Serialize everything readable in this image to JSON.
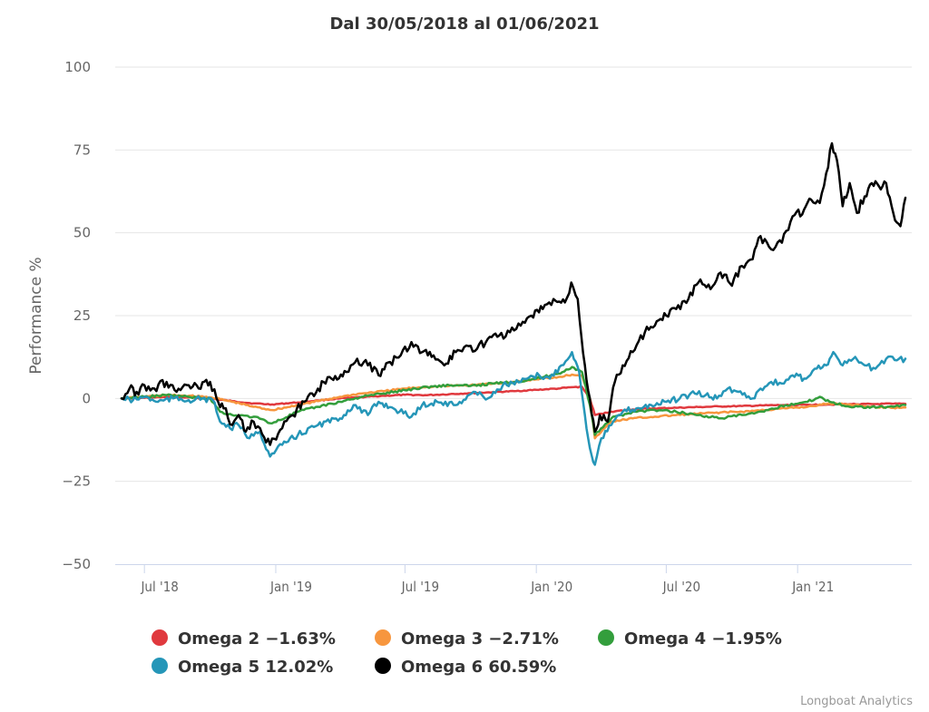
{
  "chart_data": {
    "type": "line",
    "title": "Dal 30/05/2018 al 01/06/2021",
    "xlabel": "",
    "ylabel": "Performance %",
    "ylim": [
      -50,
      100
    ],
    "yticks": [
      100,
      75,
      50,
      25,
      0,
      -25,
      -50
    ],
    "ytick_labels": [
      "100",
      "75",
      "50",
      "25",
      "0",
      "−25",
      "−50"
    ],
    "xlim": [
      "2018-05-30",
      "2021-06-01"
    ],
    "xticks": [
      "2018-07-01",
      "2019-01-01",
      "2019-07-01",
      "2020-01-01",
      "2020-07-01",
      "2021-01-01"
    ],
    "xtick_labels": [
      "Jul '18",
      "Jan '19",
      "Jul '19",
      "Jan '20",
      "Jul '20",
      "Jan '21"
    ],
    "grid": true,
    "legend_position": "bottom",
    "credits": "Longboat Analytics",
    "series": [
      {
        "name": "Omega 2",
        "legend_label": "Omega 2 −1.63%",
        "final_value": -1.63,
        "color": "#e0393e",
        "x": [
          "2018-05-30",
          "2018-07-01",
          "2018-08-01",
          "2018-09-01",
          "2018-10-01",
          "2018-11-01",
          "2018-12-01",
          "2018-12-27",
          "2019-02-01",
          "2019-03-01",
          "2019-04-01",
          "2019-05-01",
          "2019-06-01",
          "2019-07-01",
          "2019-08-01",
          "2019-09-01",
          "2019-10-01",
          "2019-11-01",
          "2019-12-01",
          "2020-01-01",
          "2020-02-01",
          "2020-02-20",
          "2020-03-05",
          "2020-03-16",
          "2020-03-23",
          "2020-04-15",
          "2020-05-15",
          "2020-06-15",
          "2020-07-15",
          "2020-08-15",
          "2020-09-15",
          "2020-10-15",
          "2020-11-15",
          "2020-12-15",
          "2021-01-15",
          "2021-02-15",
          "2021-03-15",
          "2021-04-15",
          "2021-05-15",
          "2021-06-01"
        ],
        "y": [
          0,
          0.2,
          0.4,
          0.3,
          0,
          -0.8,
          -1.5,
          -1.8,
          -1.2,
          -0.6,
          0,
          0.4,
          0.8,
          1.1,
          1,
          1.3,
          1.6,
          1.9,
          2.2,
          2.6,
          3,
          3.4,
          3.5,
          0,
          -5,
          -4,
          -3.3,
          -3,
          -2.8,
          -2.6,
          -2.4,
          -2.3,
          -2.1,
          -2,
          -1.9,
          -1.8,
          -1.7,
          -1.7,
          -1.6,
          -1.63
        ]
      },
      {
        "name": "Omega 3",
        "legend_label": "Omega 3 −2.71%",
        "final_value": -2.71,
        "color": "#f7963e",
        "x": [
          "2018-05-30",
          "2018-07-01",
          "2018-08-01",
          "2018-09-01",
          "2018-10-01",
          "2018-11-01",
          "2018-12-01",
          "2018-12-27",
          "2019-02-01",
          "2019-03-01",
          "2019-04-01",
          "2019-05-01",
          "2019-06-01",
          "2019-07-01",
          "2019-08-01",
          "2019-09-01",
          "2019-10-01",
          "2019-11-01",
          "2019-12-01",
          "2020-01-01",
          "2020-02-01",
          "2020-02-20",
          "2020-03-05",
          "2020-03-16",
          "2020-03-23",
          "2020-04-15",
          "2020-05-15",
          "2020-06-15",
          "2020-07-15",
          "2020-08-15",
          "2020-09-15",
          "2020-10-15",
          "2020-11-15",
          "2020-12-15",
          "2021-01-15",
          "2021-02-15",
          "2021-03-15",
          "2021-04-15",
          "2021-05-15",
          "2021-06-01"
        ],
        "y": [
          0,
          0.5,
          1,
          0.8,
          0.4,
          -1,
          -2.5,
          -3.5,
          -2,
          -0.8,
          0.5,
          1.5,
          2.2,
          3,
          3.5,
          3.8,
          4,
          4.5,
          5,
          5.8,
          6.5,
          7.2,
          7,
          0,
          -12,
          -7,
          -6,
          -5.5,
          -5,
          -4.6,
          -4.2,
          -4,
          -3.5,
          -3,
          -2.5,
          -1.5,
          -1.8,
          -2.5,
          -2.8,
          -2.71
        ]
      },
      {
        "name": "Omega 4",
        "legend_label": "Omega 4 −1.95%",
        "final_value": -1.95,
        "color": "#339e3c",
        "x": [
          "2018-05-30",
          "2018-07-01",
          "2018-08-01",
          "2018-09-01",
          "2018-10-01",
          "2018-10-15",
          "2018-11-01",
          "2018-12-01",
          "2018-12-27",
          "2019-02-01",
          "2019-03-01",
          "2019-04-01",
          "2019-05-01",
          "2019-06-01",
          "2019-07-01",
          "2019-08-01",
          "2019-09-01",
          "2019-10-01",
          "2019-11-01",
          "2019-12-01",
          "2020-01-01",
          "2020-02-01",
          "2020-02-20",
          "2020-03-05",
          "2020-03-16",
          "2020-03-23",
          "2020-04-15",
          "2020-05-15",
          "2020-06-15",
          "2020-07-15",
          "2020-08-15",
          "2020-09-15",
          "2020-10-15",
          "2020-11-15",
          "2020-12-15",
          "2021-01-15",
          "2021-02-01",
          "2021-02-15",
          "2021-03-15",
          "2021-04-15",
          "2021-05-15",
          "2021-06-01"
        ],
        "y": [
          0,
          0.5,
          1,
          0.5,
          0,
          -4,
          -5,
          -5.5,
          -7.5,
          -4,
          -2.5,
          -1,
          0.5,
          1.5,
          2.5,
          3.5,
          4,
          3.8,
          4.5,
          5,
          6,
          7.5,
          9.5,
          8,
          -2,
          -11,
          -6,
          -4,
          -3.5,
          -4,
          -5,
          -6,
          -5,
          -4,
          -2,
          -1,
          0.5,
          -1,
          -2.5,
          -2.5,
          -2.5,
          -1.95
        ]
      },
      {
        "name": "Omega 5",
        "legend_label": "Omega 5 12.02%",
        "final_value": 12.02,
        "color": "#2596b8",
        "x": [
          "2018-05-30",
          "2018-06-15",
          "2018-07-01",
          "2018-07-20",
          "2018-08-10",
          "2018-09-01",
          "2018-09-20",
          "2018-10-05",
          "2018-10-15",
          "2018-10-29",
          "2018-11-10",
          "2018-11-25",
          "2018-12-10",
          "2018-12-24",
          "2019-01-10",
          "2019-02-01",
          "2019-03-01",
          "2019-04-01",
          "2019-04-20",
          "2019-05-10",
          "2019-05-25",
          "2019-06-15",
          "2019-07-10",
          "2019-07-25",
          "2019-08-15",
          "2019-09-10",
          "2019-10-05",
          "2019-10-25",
          "2019-11-15",
          "2019-12-10",
          "2020-01-05",
          "2020-01-20",
          "2020-02-05",
          "2020-02-20",
          "2020-03-01",
          "2020-03-09",
          "2020-03-16",
          "2020-03-23",
          "2020-04-01",
          "2020-04-15",
          "2020-05-01",
          "2020-05-20",
          "2020-06-10",
          "2020-07-01",
          "2020-07-20",
          "2020-08-10",
          "2020-08-25",
          "2020-09-10",
          "2020-09-25",
          "2020-10-10",
          "2020-10-30",
          "2020-11-10",
          "2020-11-25",
          "2020-12-10",
          "2020-12-25",
          "2021-01-10",
          "2021-01-25",
          "2021-02-10",
          "2021-02-20",
          "2021-03-05",
          "2021-03-20",
          "2021-04-05",
          "2021-04-20",
          "2021-05-05",
          "2021-05-20",
          "2021-06-01"
        ],
        "y": [
          0,
          -0.5,
          0.5,
          -1,
          0,
          -0.5,
          0,
          -0.5,
          -7,
          -9,
          -8,
          -12,
          -10,
          -17.5,
          -14,
          -11,
          -8,
          -6,
          -2,
          -5,
          -1,
          -3,
          -5.5,
          -2,
          -1,
          -2,
          2,
          0,
          4,
          5,
          7,
          6,
          10,
          14,
          8,
          -5,
          -15,
          -20,
          -12,
          -8,
          -4,
          -3,
          -2,
          -1,
          0,
          1.5,
          1,
          0,
          3,
          2,
          0,
          3,
          5,
          4.5,
          7,
          6,
          9,
          10,
          14,
          10,
          12,
          10,
          9,
          12,
          11.5,
          12.02
        ]
      },
      {
        "name": "Omega 6",
        "legend_label": "Omega 6 60.59%",
        "final_value": 60.59,
        "color": "#000000",
        "x": [
          "2018-05-30",
          "2018-06-10",
          "2018-06-20",
          "2018-07-01",
          "2018-07-15",
          "2018-08-01",
          "2018-08-15",
          "2018-09-01",
          "2018-09-15",
          "2018-10-01",
          "2018-10-10",
          "2018-10-20",
          "2018-11-01",
          "2018-11-10",
          "2018-11-20",
          "2018-12-01",
          "2018-12-10",
          "2018-12-24",
          "2019-01-10",
          "2019-01-25",
          "2019-02-10",
          "2019-03-01",
          "2019-03-20",
          "2019-04-10",
          "2019-04-25",
          "2019-05-10",
          "2019-05-25",
          "2019-06-10",
          "2019-06-25",
          "2019-07-10",
          "2019-07-25",
          "2019-08-10",
          "2019-08-25",
          "2019-09-10",
          "2019-09-25",
          "2019-10-10",
          "2019-10-25",
          "2019-11-10",
          "2019-11-25",
          "2019-12-10",
          "2019-12-25",
          "2020-01-10",
          "2020-01-25",
          "2020-02-10",
          "2020-02-19",
          "2020-02-28",
          "2020-03-09",
          "2020-03-16",
          "2020-03-23",
          "2020-03-30",
          "2020-04-10",
          "2020-04-20",
          "2020-05-01",
          "2020-05-15",
          "2020-06-01",
          "2020-06-15",
          "2020-07-01",
          "2020-07-15",
          "2020-08-01",
          "2020-08-15",
          "2020-09-01",
          "2020-09-15",
          "2020-10-01",
          "2020-10-15",
          "2020-10-30",
          "2020-11-10",
          "2020-11-25",
          "2020-12-10",
          "2020-12-25",
          "2021-01-10",
          "2021-01-20",
          "2021-02-01",
          "2021-02-10",
          "2021-02-18",
          "2021-02-25",
          "2021-03-05",
          "2021-03-15",
          "2021-03-25",
          "2021-04-05",
          "2021-04-15",
          "2021-04-25",
          "2021-05-05",
          "2021-05-15",
          "2021-05-25",
          "2021-06-01"
        ],
        "y": [
          0,
          3,
          2,
          4,
          3,
          5,
          2,
          4,
          3,
          5,
          0,
          -3,
          -8,
          -5,
          -10,
          -7,
          -9,
          -14,
          -9,
          -5,
          -1,
          3,
          6,
          8,
          12,
          10,
          7,
          11,
          13,
          17,
          14,
          13,
          10,
          14,
          16,
          15,
          18,
          19,
          20,
          22,
          25,
          27,
          30,
          29,
          35,
          30,
          10,
          0,
          -10,
          -5,
          -7,
          5,
          10,
          14,
          20,
          22,
          25,
          27,
          30,
          35,
          33,
          38,
          34,
          40,
          42,
          49,
          45,
          47,
          55,
          57,
          60,
          59,
          68,
          77,
          72,
          58,
          65,
          56,
          61,
          65,
          64,
          65,
          56,
          52,
          60.59
        ]
      }
    ]
  }
}
